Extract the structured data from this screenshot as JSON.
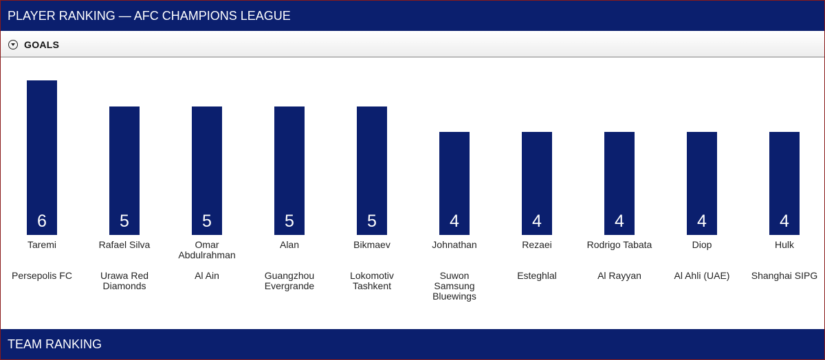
{
  "header": {
    "title": "PLAYER RANKING — AFC CHAMPIONS LEAGUE"
  },
  "section": {
    "label": "GOALS",
    "toggle_icon": "chevron-down-circle-icon"
  },
  "footer": {
    "title": "TEAM RANKING"
  },
  "colors": {
    "bar": "#0b1f6e",
    "header_bg": "#0b1f6e"
  },
  "chart_data": {
    "type": "bar",
    "title": "",
    "xlabel": "",
    "ylabel": "",
    "ylim": [
      0,
      6
    ],
    "categories": [
      "Taremi",
      "Rafael Silva",
      "Omar Abdulrahman",
      "Alan",
      "Bikmaev",
      "Johnathan",
      "Rezaei",
      "Rodrigo Tabata",
      "Diop",
      "Hulk"
    ],
    "clubs": [
      "Persepolis FC",
      "Urawa Red Diamonds",
      "Al Ain",
      "Guangzhou Evergrande",
      "Lokomotiv Tashkent",
      "Suwon Samsung Bluewings",
      "Esteghlal",
      "Al Rayyan",
      "Al Ahli (UAE)",
      "Shanghai SIPG"
    ],
    "series": [
      {
        "values": [
          6,
          5,
          5,
          5,
          5,
          4,
          4,
          4,
          4,
          4
        ]
      }
    ]
  }
}
